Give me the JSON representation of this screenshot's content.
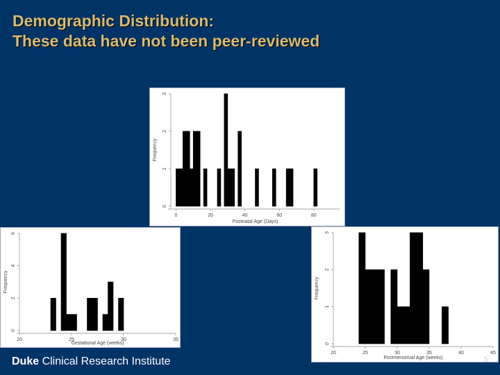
{
  "slide": {
    "title_line1": "Demographic Distribution:",
    "title_line2": "These data have not been peer-reviewed",
    "footer_brand_bold": "Duke",
    "footer_brand_rest": " Clinical Research Institute",
    "page_number": "5"
  },
  "colors": {
    "background": "#003366",
    "title": "#d9bb6e",
    "bars": "#000000"
  },
  "chart_data": [
    {
      "id": "postnatal",
      "type": "bar",
      "xlabel": "Postnatal Age (Days)",
      "ylabel": "Frequency",
      "xlim": [
        -3,
        95
      ],
      "ylim": [
        0,
        3
      ],
      "xticks": [
        0,
        20,
        40,
        60,
        80
      ],
      "yticks": [
        0,
        1,
        2,
        3
      ],
      "bin_width": 2,
      "bins": [
        {
          "x": 1,
          "y": 1
        },
        {
          "x": 3,
          "y": 1
        },
        {
          "x": 5,
          "y": 2
        },
        {
          "x": 7,
          "y": 2
        },
        {
          "x": 9,
          "y": 1
        },
        {
          "x": 11,
          "y": 2
        },
        {
          "x": 13,
          "y": 2
        },
        {
          "x": 17,
          "y": 1
        },
        {
          "x": 25,
          "y": 1
        },
        {
          "x": 29,
          "y": 3
        },
        {
          "x": 31,
          "y": 1
        },
        {
          "x": 33,
          "y": 1
        },
        {
          "x": 37,
          "y": 2
        },
        {
          "x": 47,
          "y": 1
        },
        {
          "x": 57,
          "y": 1
        },
        {
          "x": 65,
          "y": 1
        },
        {
          "x": 67,
          "y": 1
        },
        {
          "x": 81,
          "y": 1
        }
      ]
    },
    {
      "id": "gestational",
      "type": "bar",
      "xlabel": "Gestational Age (weeks)",
      "ylabel": "Frequency",
      "xlim": [
        20,
        35
      ],
      "ylim": [
        0,
        6
      ],
      "xticks": [
        20,
        25,
        30,
        35
      ],
      "yticks": [
        0,
        2,
        4,
        6
      ],
      "bin_width": 0.5,
      "bins": [
        {
          "x": 23.25,
          "y": 2
        },
        {
          "x": 24.25,
          "y": 6
        },
        {
          "x": 24.75,
          "y": 1
        },
        {
          "x": 25.25,
          "y": 1
        },
        {
          "x": 26.75,
          "y": 2
        },
        {
          "x": 27.25,
          "y": 2
        },
        {
          "x": 28.25,
          "y": 1
        },
        {
          "x": 28.75,
          "y": 3
        },
        {
          "x": 29.75,
          "y": 2
        }
      ]
    },
    {
      "id": "postmenstrual",
      "type": "bar",
      "xlabel": "Postmenstrual Age (weeks)",
      "ylabel": "Frequency",
      "xlim": [
        20,
        45
      ],
      "ylim": [
        0,
        3
      ],
      "xticks": [
        20,
        25,
        30,
        35,
        40,
        45
      ],
      "yticks": [
        0,
        1,
        2,
        3
      ],
      "bin_width": 1,
      "bins": [
        {
          "x": 24.5,
          "y": 3
        },
        {
          "x": 25.5,
          "y": 2
        },
        {
          "x": 26.5,
          "y": 2
        },
        {
          "x": 27.5,
          "y": 2
        },
        {
          "x": 29.5,
          "y": 2
        },
        {
          "x": 30.5,
          "y": 1
        },
        {
          "x": 31.5,
          "y": 1
        },
        {
          "x": 32.5,
          "y": 3
        },
        {
          "x": 33.5,
          "y": 3
        },
        {
          "x": 34.5,
          "y": 2
        },
        {
          "x": 37.5,
          "y": 1
        }
      ]
    }
  ]
}
